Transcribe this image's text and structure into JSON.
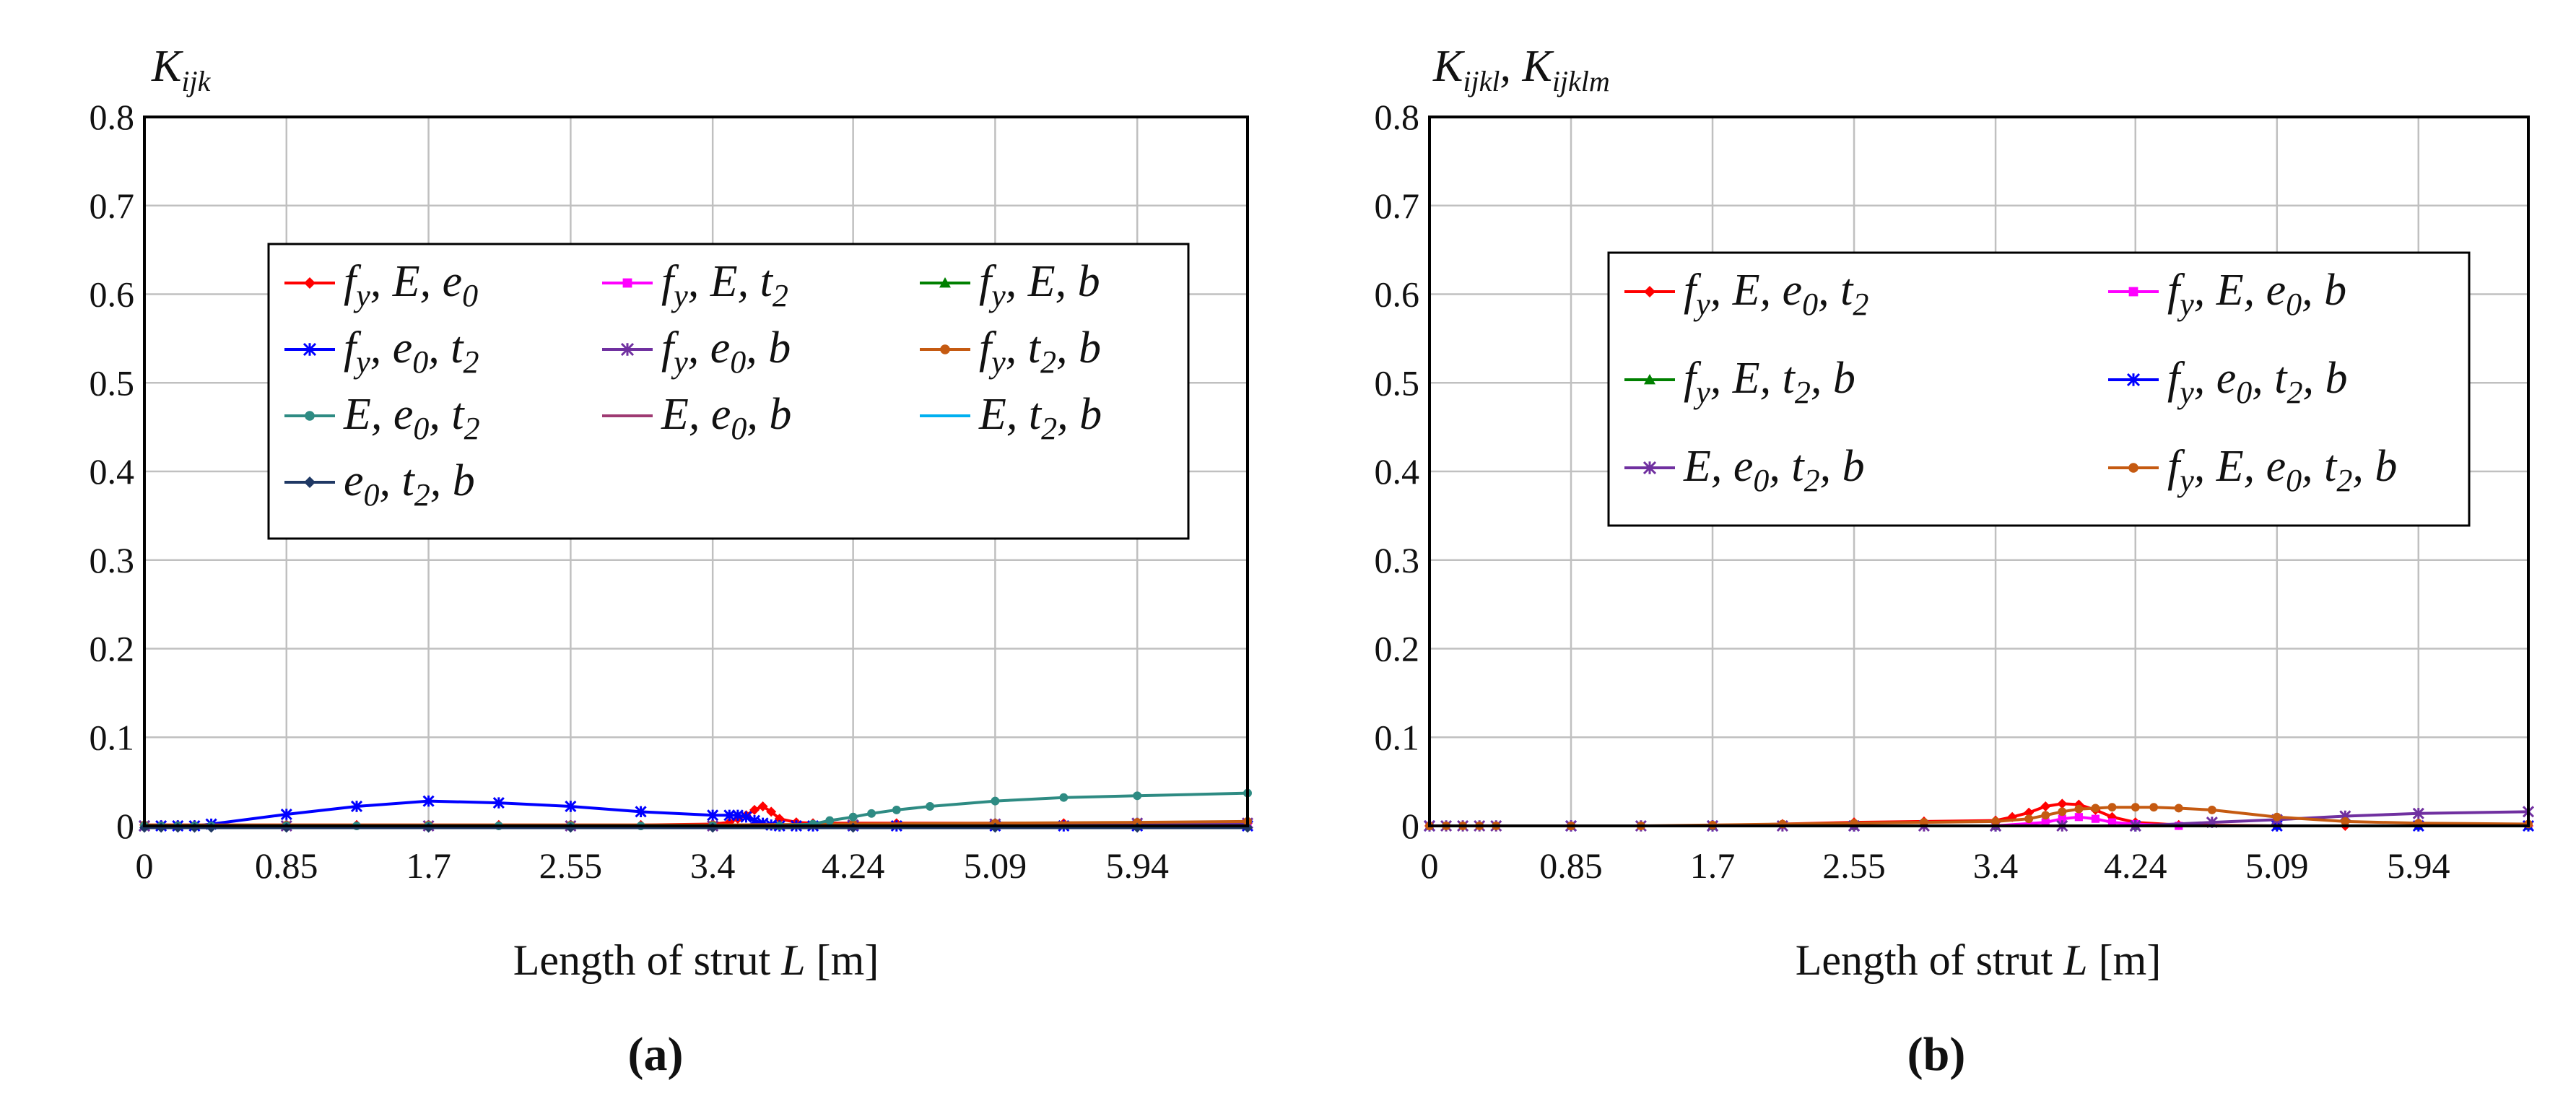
{
  "chart_data": [
    {
      "type": "line",
      "panel_label": "(a)",
      "ylabel": "K_ijk",
      "ylabel_main": "K",
      "ylabel_sub": "ijk",
      "xlabel": "Length of strut L [m]",
      "xlabel_pre": "Length of strut ",
      "xlabel_var": "L",
      "xlabel_post": " [m]",
      "x_ticks": [
        "0",
        "0.85",
        "1.7",
        "2.55",
        "3.4",
        "4.24",
        "5.09",
        "5.94"
      ],
      "y_ticks": [
        "0",
        "0.1",
        "0.2",
        "0.3",
        "0.4",
        "0.5",
        "0.6",
        "0.7",
        "0.8"
      ],
      "xlim": [
        0,
        6.6
      ],
      "ylim": [
        0,
        0.8
      ],
      "grid": true,
      "legend_columns": 3,
      "series": [
        {
          "name": "fy, E, e0",
          "color": "#ff0000",
          "marker": "diamond",
          "x": [
            0,
            0.1,
            0.2,
            0.3,
            0.4,
            0.85,
            1.27,
            1.7,
            2.12,
            2.55,
            2.97,
            3.4,
            3.5,
            3.55,
            3.6,
            3.65,
            3.7,
            3.75,
            3.8,
            3.9,
            4.0,
            4.24,
            4.5,
            5.09,
            5.5,
            5.94,
            6.6
          ],
          "y": [
            0.001,
            0.001,
            0.001,
            0.001,
            0.001,
            0.001,
            0.001,
            0.001,
            0.001,
            0.001,
            0.001,
            0.002,
            0.004,
            0.008,
            0.012,
            0.018,
            0.022,
            0.016,
            0.008,
            0.004,
            0.003,
            0.003,
            0.003,
            0.003,
            0.003,
            0.003,
            0.003
          ]
        },
        {
          "name": "fy, E, t2",
          "color": "#ff00ff",
          "marker": "square",
          "x": [
            0,
            0.85,
            1.7,
            2.55,
            3.4,
            4.24,
            5.09,
            5.94,
            6.6
          ],
          "y": [
            0,
            0,
            0,
            0,
            0,
            0,
            0.001,
            0.001,
            0.001
          ]
        },
        {
          "name": "fy, E, b",
          "color": "#008000",
          "marker": "triangle",
          "x": [
            0,
            0.85,
            1.7,
            2.55,
            3.4,
            4.24,
            5.09,
            5.94,
            6.6
          ],
          "y": [
            0,
            0,
            0,
            0,
            0,
            0,
            0,
            0,
            0
          ]
        },
        {
          "name": "fy, e0, t2",
          "color": "#0000ff",
          "marker": "star",
          "x": [
            0,
            0.1,
            0.2,
            0.3,
            0.4,
            0.85,
            1.27,
            1.7,
            2.12,
            2.55,
            2.97,
            3.4,
            3.5,
            3.55,
            3.6,
            3.65,
            3.7,
            3.75,
            3.8,
            3.9,
            4.0,
            4.24,
            4.5,
            5.09,
            5.5,
            5.94,
            6.6
          ],
          "y": [
            0,
            0,
            0,
            0,
            0.002,
            0.013,
            0.022,
            0.028,
            0.026,
            0.022,
            0.016,
            0.012,
            0.012,
            0.012,
            0.01,
            0.006,
            0.003,
            0.001,
            0,
            0,
            0,
            0,
            0,
            0,
            0,
            0,
            0
          ]
        },
        {
          "name": "fy, e0, b",
          "color": "#7030a0",
          "marker": "star",
          "x": [
            0,
            0.85,
            1.7,
            2.55,
            3.4,
            4.24,
            5.09,
            5.94,
            6.6
          ],
          "y": [
            0,
            0,
            0,
            0,
            0,
            0.001,
            0.002,
            0.003,
            0.003
          ]
        },
        {
          "name": "fy, t2, b",
          "color": "#c55a11",
          "marker": "circle",
          "x": [
            0,
            0.85,
            1.7,
            2.55,
            3.4,
            4.24,
            5.09,
            5.94,
            6.6
          ],
          "y": [
            0.001,
            0.001,
            0.001,
            0.001,
            0.001,
            0.002,
            0.003,
            0.004,
            0.005
          ]
        },
        {
          "name": "E, e0, t2",
          "color": "#2e8b83",
          "marker": "circle",
          "x": [
            0,
            0.1,
            0.2,
            0.3,
            0.4,
            0.85,
            1.27,
            1.7,
            2.12,
            2.55,
            2.97,
            3.4,
            3.8,
            4.0,
            4.1,
            4.24,
            4.35,
            4.5,
            4.7,
            5.09,
            5.5,
            5.94,
            6.6
          ],
          "y": [
            0,
            0,
            0,
            0,
            0,
            0,
            0,
            0,
            0,
            0,
            0,
            0,
            0,
            0.002,
            0.006,
            0.01,
            0.014,
            0.018,
            0.022,
            0.028,
            0.032,
            0.034,
            0.037
          ]
        },
        {
          "name": "E, e0, b",
          "color": "#9e3a72",
          "marker": "none",
          "x": [
            0,
            0.85,
            1.7,
            2.55,
            3.4,
            4.24,
            5.09,
            5.94,
            6.6
          ],
          "y": [
            0,
            0,
            0,
            0,
            0,
            0,
            0,
            0,
            0
          ]
        },
        {
          "name": "E, t2, b",
          "color": "#00b0f0",
          "marker": "none",
          "x": [
            0,
            0.85,
            1.7,
            2.55,
            3.4,
            4.24,
            5.09,
            5.94,
            6.6
          ],
          "y": [
            0,
            0,
            0,
            0,
            0,
            0,
            0,
            0,
            0
          ]
        },
        {
          "name": "e0, t2, b",
          "color": "#1f3864",
          "marker": "diamond",
          "x": [
            0,
            0.1,
            0.2,
            0.3,
            0.4,
            0.85,
            1.7,
            2.55,
            3.4,
            4.24,
            5.09,
            5.94,
            6.6
          ],
          "y": [
            -0.002,
            -0.002,
            -0.002,
            -0.002,
            -0.002,
            -0.002,
            -0.002,
            -0.002,
            -0.002,
            -0.002,
            -0.002,
            -0.002,
            -0.002
          ]
        }
      ]
    },
    {
      "type": "line",
      "panel_label": "(b)",
      "ylabel": "K_ijkl, K_ijklm",
      "ylabel_k1": "K",
      "ylabel_sub1": "ijkl",
      "ylabel_sep": ", ",
      "ylabel_k2": "K",
      "ylabel_sub2": "ijklm",
      "xlabel": "Length of strut L [m]",
      "xlabel_pre": "Length of strut ",
      "xlabel_var": "L",
      "xlabel_post": " [m]",
      "x_ticks": [
        "0",
        "0.85",
        "1.7",
        "2.55",
        "3.4",
        "4.24",
        "5.09",
        "5.94"
      ],
      "y_ticks": [
        "0",
        "0.1",
        "0.2",
        "0.3",
        "0.4",
        "0.5",
        "0.6",
        "0.7",
        "0.8"
      ],
      "xlim": [
        0,
        6.6
      ],
      "ylim": [
        0,
        0.8
      ],
      "grid": true,
      "legend_columns": 2,
      "series": [
        {
          "name": "fy, E, e0, t2",
          "color": "#ff0000",
          "marker": "diamond",
          "x": [
            0,
            0.1,
            0.2,
            0.3,
            0.4,
            0.85,
            1.27,
            1.7,
            2.12,
            2.55,
            2.97,
            3.4,
            3.5,
            3.6,
            3.7,
            3.8,
            3.9,
            4.0,
            4.1,
            4.24,
            4.5,
            5.09,
            5.5,
            5.94,
            6.6
          ],
          "y": [
            0,
            0,
            0,
            0,
            0,
            0,
            0,
            0,
            0.002,
            0.004,
            0.005,
            0.006,
            0.01,
            0.015,
            0.022,
            0.025,
            0.024,
            0.018,
            0.01,
            0.004,
            0.001,
            0,
            0,
            0,
            0
          ]
        },
        {
          "name": "fy, E, e0, b",
          "color": "#ff00ff",
          "marker": "square",
          "x": [
            0,
            0.85,
            1.7,
            2.55,
            3.4,
            3.7,
            3.8,
            3.9,
            4.0,
            4.1,
            4.24,
            4.5,
            5.09,
            5.94,
            6.6
          ],
          "y": [
            0,
            0,
            0,
            0,
            0,
            0.004,
            0.008,
            0.01,
            0.008,
            0.004,
            0.002,
            0,
            0,
            0,
            0
          ]
        },
        {
          "name": "fy, E, t2, b",
          "color": "#008000",
          "marker": "triangle",
          "x": [
            0,
            0.85,
            1.7,
            2.55,
            3.4,
            4.24,
            5.09,
            5.94,
            6.6
          ],
          "y": [
            0,
            0,
            0,
            0,
            0,
            0,
            0,
            0,
            0
          ]
        },
        {
          "name": "fy, e0, t2, b",
          "color": "#0000ff",
          "marker": "star",
          "x": [
            0,
            0.85,
            1.7,
            2.55,
            3.4,
            4.24,
            5.09,
            5.94,
            6.6
          ],
          "y": [
            0,
            0,
            0,
            0,
            0,
            0,
            0,
            0,
            0
          ]
        },
        {
          "name": "E, e0, t2, b",
          "color": "#7030a0",
          "marker": "star",
          "x": [
            0,
            0.1,
            0.2,
            0.3,
            0.4,
            0.85,
            1.27,
            1.7,
            2.12,
            2.55,
            2.97,
            3.4,
            3.8,
            4.24,
            4.7,
            5.09,
            5.5,
            5.94,
            6.6
          ],
          "y": [
            0,
            0,
            0,
            0,
            0,
            0,
            0,
            0,
            0,
            0,
            0,
            0,
            0,
            0,
            0.004,
            0.007,
            0.011,
            0.014,
            0.016
          ]
        },
        {
          "name": "fy, E, e0, t2, b",
          "color": "#c55a11",
          "marker": "circle",
          "x": [
            0,
            0.1,
            0.2,
            0.3,
            0.4,
            0.85,
            1.27,
            1.7,
            2.12,
            2.55,
            2.97,
            3.4,
            3.6,
            3.7,
            3.8,
            3.9,
            4.0,
            4.1,
            4.24,
            4.35,
            4.5,
            4.7,
            5.09,
            5.5,
            5.94,
            6.6
          ],
          "y": [
            0,
            0,
            0,
            0,
            0,
            0,
            0,
            0.001,
            0.002,
            0.003,
            0.004,
            0.005,
            0.008,
            0.012,
            0.016,
            0.019,
            0.02,
            0.021,
            0.021,
            0.021,
            0.02,
            0.018,
            0.01,
            0.005,
            0.003,
            0.002
          ]
        }
      ]
    }
  ]
}
